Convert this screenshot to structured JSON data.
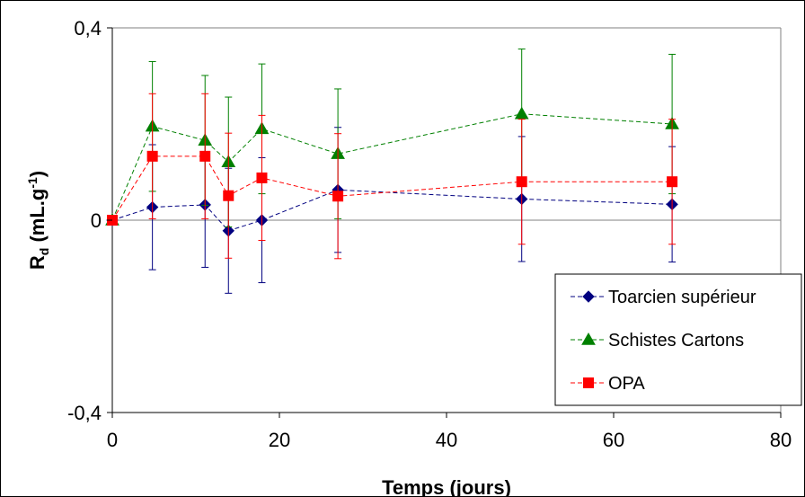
{
  "chart_data": {
    "type": "scatter",
    "title": "",
    "xlabel": "Temps (jours)",
    "ylabel_main": "R",
    "ylabel_sub": "d",
    "ylabel_unit": " (mL.g",
    "ylabel_sup": "-1",
    "ylabel_close": ")",
    "xlim": [
      0,
      80
    ],
    "ylim": [
      -0.4,
      0.4
    ],
    "x_ticks": [
      0,
      20,
      40,
      60,
      80
    ],
    "x_tick_labels": [
      "0",
      "20",
      "40",
      "60",
      "80"
    ],
    "y_ticks": [
      -0.4,
      0,
      0.4
    ],
    "y_tick_labels": [
      "-0,4",
      "0",
      "0,4"
    ],
    "grid": "horizontal",
    "legend_position": "bottom-right",
    "series": [
      {
        "name": "Toarcien supérieur",
        "color": "#000080",
        "marker": "diamond",
        "line_style": "dashed",
        "x": [
          0,
          4.8,
          11.1,
          13.9,
          17.9,
          27,
          49,
          67
        ],
        "y": [
          0,
          0.027,
          0.032,
          -0.022,
          0.0,
          0.063,
          0.044,
          0.033
        ],
        "err": [
          0,
          0.13,
          0.13,
          0.13,
          0.13,
          0.13,
          0.13,
          0.12
        ]
      },
      {
        "name": "Schistes Cartons",
        "color": "#008000",
        "marker": "triangle",
        "line_style": "dashed",
        "x": [
          0,
          4.8,
          11.1,
          13.9,
          17.9,
          27,
          49,
          67
        ],
        "y": [
          0,
          0.195,
          0.166,
          0.121,
          0.19,
          0.138,
          0.221,
          0.2
        ],
        "err": [
          0,
          0.135,
          0.135,
          0.135,
          0.135,
          0.135,
          0.135,
          0.145
        ]
      },
      {
        "name": "OPA",
        "color": "#FF0000",
        "marker": "square",
        "line_style": "dashed",
        "x": [
          0,
          4.8,
          11.1,
          13.9,
          17.9,
          27,
          49,
          67
        ],
        "y": [
          0,
          0.133,
          0.133,
          0.051,
          0.088,
          0.05,
          0.08,
          0.08
        ],
        "err": [
          0,
          0.13,
          0.13,
          0.13,
          0.13,
          0.13,
          0.13,
          0.13
        ]
      }
    ]
  }
}
